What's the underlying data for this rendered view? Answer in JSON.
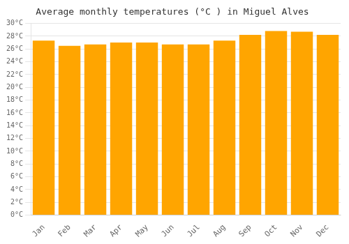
{
  "chart_data": {
    "type": "bar",
    "title": "Average monthly temperatures (°C ) in Miguel Alves",
    "categories": [
      "Jan",
      "Feb",
      "Mar",
      "Apr",
      "May",
      "Jun",
      "Jul",
      "Aug",
      "Sep",
      "Oct",
      "Nov",
      "Dec"
    ],
    "values": [
      27.3,
      26.5,
      26.7,
      27.0,
      27.0,
      26.7,
      26.7,
      27.3,
      28.2,
      28.8,
      28.7,
      28.2
    ],
    "color": "#FFA500",
    "ylim": [
      0,
      30
    ],
    "yticks": [
      {
        "value": 0,
        "label": "0°C"
      },
      {
        "value": 2,
        "label": "2°C"
      },
      {
        "value": 4,
        "label": "4°C"
      },
      {
        "value": 6,
        "label": "6°C"
      },
      {
        "value": 8,
        "label": "8°C"
      },
      {
        "value": 10,
        "label": "10°C"
      },
      {
        "value": 12,
        "label": "12°C"
      },
      {
        "value": 14,
        "label": "14°C"
      },
      {
        "value": 16,
        "label": "16°C"
      },
      {
        "value": 18,
        "label": "18°C"
      },
      {
        "value": 20,
        "label": "20°C"
      },
      {
        "value": 22,
        "label": "22°C"
      },
      {
        "value": 24,
        "label": "24°C"
      },
      {
        "value": 26,
        "label": "26°C"
      },
      {
        "value": 28,
        "label": "28°C"
      },
      {
        "value": 30,
        "label": "30°C"
      }
    ],
    "grid": true
  }
}
